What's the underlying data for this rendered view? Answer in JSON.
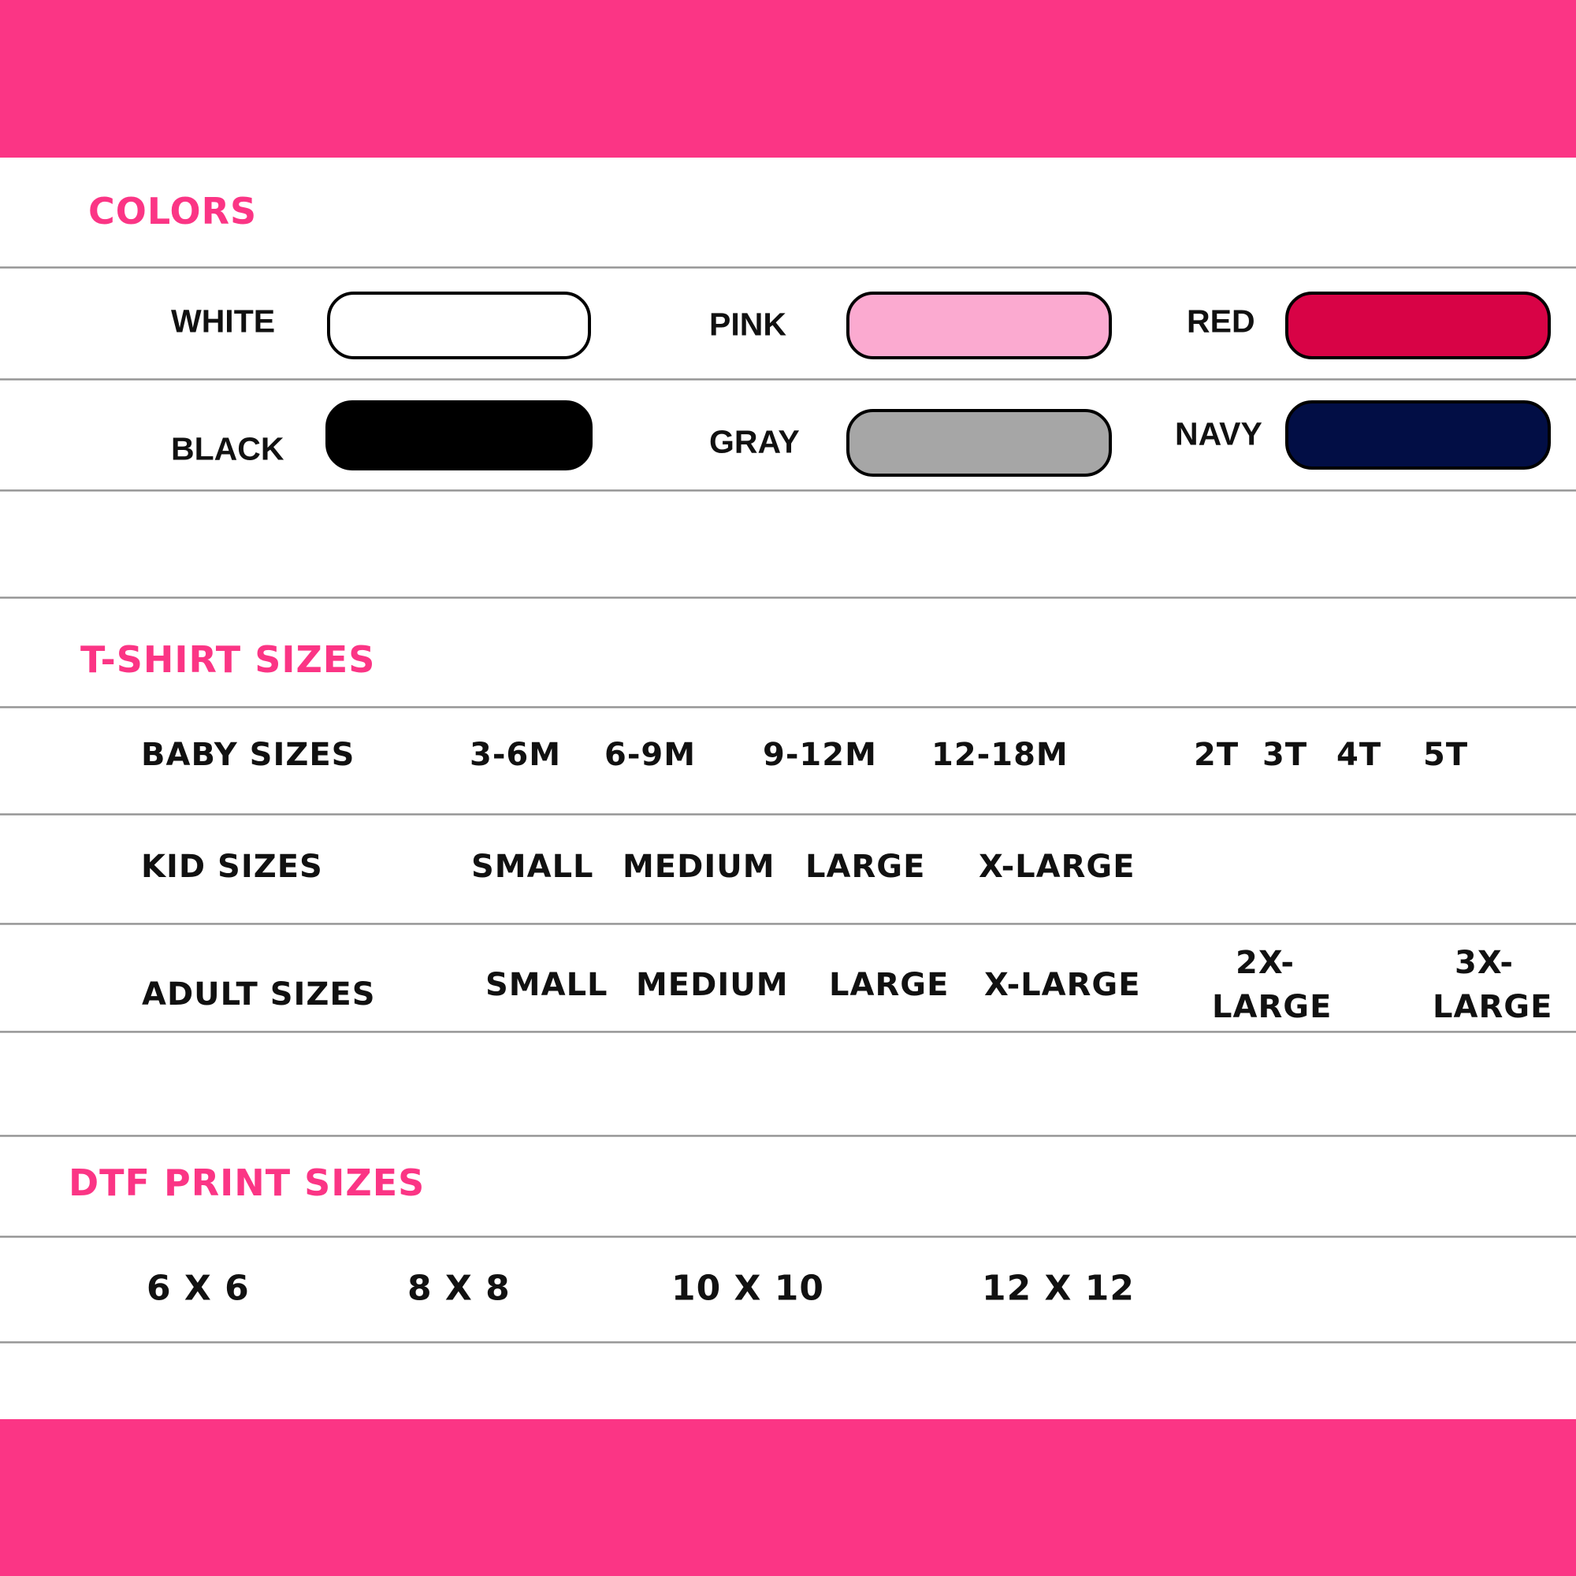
{
  "theme": {
    "accent": "#fb3585"
  },
  "colors_section": {
    "title": "COLORS",
    "swatches": [
      {
        "label": "WHITE",
        "color": "#ffffff"
      },
      {
        "label": "PINK",
        "color": "#fbaad0"
      },
      {
        "label": "RED",
        "color": "#d80346"
      },
      {
        "label": "BLACK",
        "color": "#000000"
      },
      {
        "label": "GRAY",
        "color": "#a6a6a6"
      },
      {
        "label": "NAVY",
        "color": "#020e45"
      }
    ]
  },
  "tshirt_section": {
    "title": "T-SHIRT SIZES",
    "baby": {
      "label": "BABY SIZES",
      "sizes": [
        "3-6M",
        "6-9M",
        "9-12M",
        "12-18M",
        "2T",
        "3T",
        "4T",
        "5T"
      ]
    },
    "kid": {
      "label": "KID SIZES",
      "sizes": [
        "SMALL",
        "MEDIUM",
        "LARGE",
        "X-LARGE"
      ]
    },
    "adult": {
      "label": "ADULT SIZES",
      "sizes": [
        "SMALL",
        "MEDIUM",
        "LARGE",
        "X-LARGE",
        "2X-",
        "LARGE",
        "3X-",
        "LARGE"
      ]
    }
  },
  "dtf_section": {
    "title": "DTF PRINT SIZES",
    "sizes": [
      "6 X 6",
      "8 X 8",
      "10 X 10",
      "12 X 12"
    ]
  }
}
